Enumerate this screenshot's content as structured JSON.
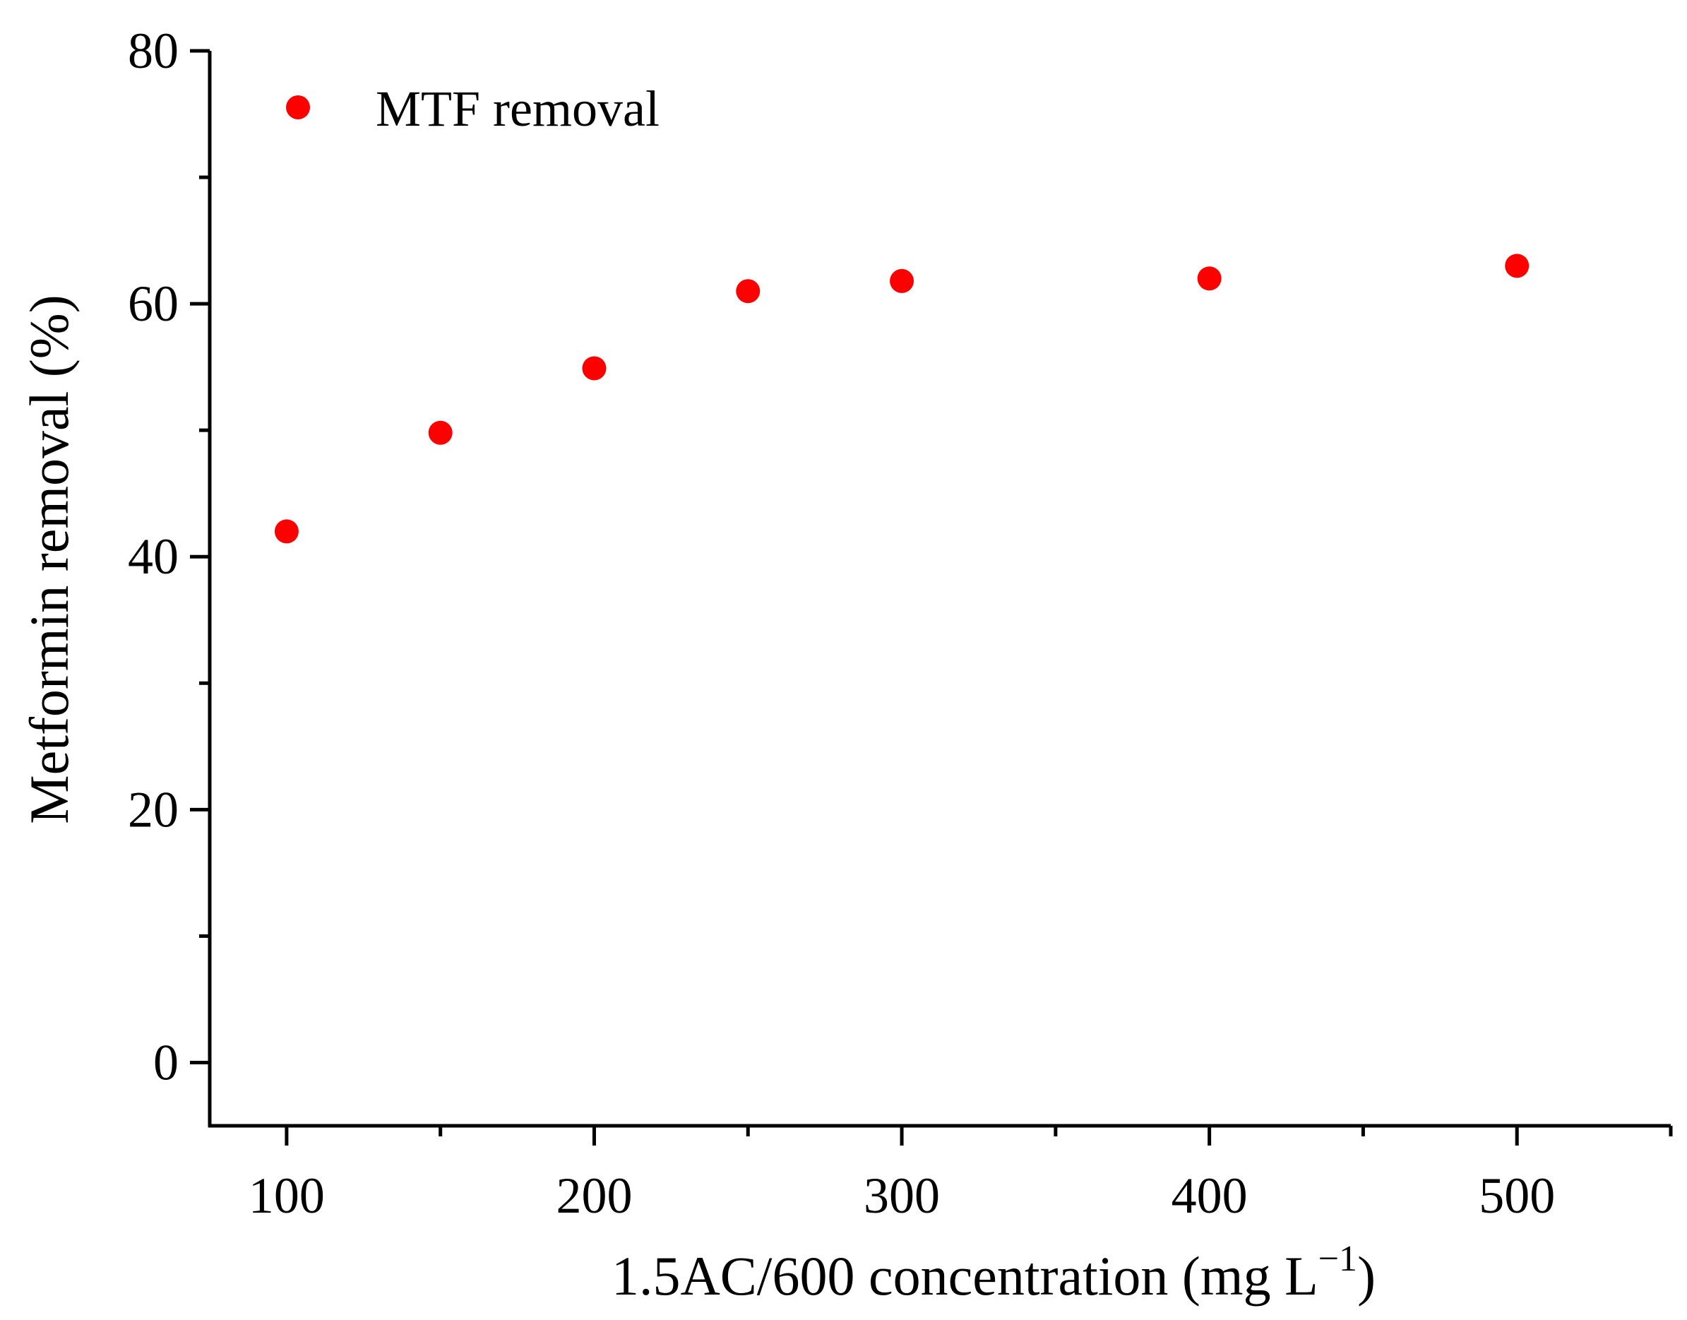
{
  "chart_data": {
    "type": "scatter",
    "title": "",
    "xlabel": "1.5AC/600 concentration (mg L",
    "xlabel_sup": "−1",
    "xlabel_close": ")",
    "ylabel": "Metformin removal (%)",
    "xlim": [
      75,
      550
    ],
    "ylim": [
      -5,
      80
    ],
    "x_ticks": [
      100,
      200,
      300,
      400,
      500
    ],
    "x_minor_ticks": [
      150,
      250,
      350,
      450,
      550
    ],
    "y_ticks": [
      0,
      20,
      40,
      60,
      80
    ],
    "y_minor_ticks": [
      10,
      30,
      50,
      70
    ],
    "legend_position": "top-left",
    "series": [
      {
        "name": "MTF removal",
        "color": "#ff0000",
        "x": [
          100,
          150,
          200,
          250,
          300,
          400,
          500
        ],
        "y": [
          42,
          49.8,
          54.9,
          61,
          61.8,
          62,
          63
        ]
      }
    ]
  }
}
